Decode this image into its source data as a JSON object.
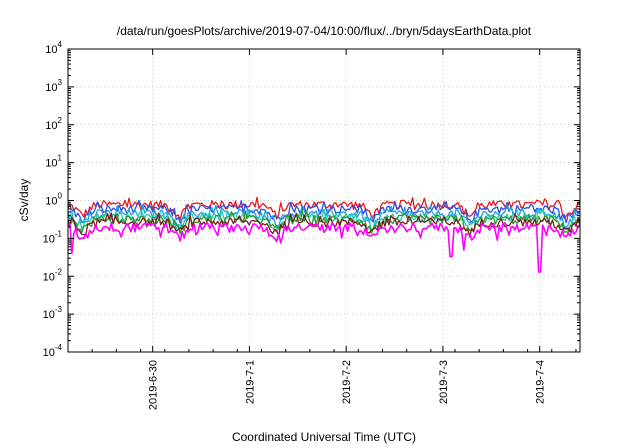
{
  "chart_data": {
    "type": "line",
    "title": "/data/run/goesPlots/archive/2019-07-04/10:00/flux/../bryn/5daysEarthData.plot",
    "xlabel": "Coordinated Universal Time (UTC)",
    "ylabel": "cSv/day",
    "yscale": "log",
    "ylim": [
      0.0001,
      10000
    ],
    "xlim": [
      "2019-06-29T03:00",
      "2019-07-04T10:00"
    ],
    "grid": true,
    "yticks": [
      {
        "base": "10",
        "exp": "4",
        "value": 10000
      },
      {
        "base": "10",
        "exp": "3",
        "value": 1000
      },
      {
        "base": "10",
        "exp": "2",
        "value": 100
      },
      {
        "base": "10",
        "exp": "1",
        "value": 10
      },
      {
        "base": "10",
        "exp": "0",
        "value": 1
      },
      {
        "base": "10",
        "exp": "-1",
        "value": 0.1
      },
      {
        "base": "10",
        "exp": "-2",
        "value": 0.01
      },
      {
        "base": "10",
        "exp": "-3",
        "value": 0.001
      },
      {
        "base": "10",
        "exp": "-4",
        "value": 0.0001
      }
    ],
    "xticks": [
      {
        "label": "2019-6-30",
        "date": "2019-06-30T00:00"
      },
      {
        "label": "2019-7-1",
        "date": "2019-07-01T00:00"
      },
      {
        "label": "2019-7-2",
        "date": "2019-07-02T00:00"
      },
      {
        "label": "2019-7-3",
        "date": "2019-07-03T00:00"
      },
      {
        "label": "2019-7-4",
        "date": "2019-07-04T00:00"
      }
    ],
    "series": [
      {
        "color": "#e8171e",
        "approx_level": 0.78
      },
      {
        "color": "#2a4fe6",
        "approx_level": 0.6
      },
      {
        "color": "#1f9fe0",
        "approx_level": 0.45
      },
      {
        "color": "#25c9b4",
        "approx_level": 0.37
      },
      {
        "color": "#2b9a2b",
        "approx_level": 0.32
      },
      {
        "color": "#7a1c1c",
        "approx_level": 0.27
      },
      {
        "color": "#ff00ff",
        "approx_level": 0.2
      }
    ],
    "notable_dips": [
      {
        "date": "2019-06-29T04:00",
        "value": 0.04
      },
      {
        "date": "2019-07-03T02:00",
        "value": 0.033
      },
      {
        "date": "2019-07-04T00:00",
        "value": 0.013
      }
    ]
  }
}
